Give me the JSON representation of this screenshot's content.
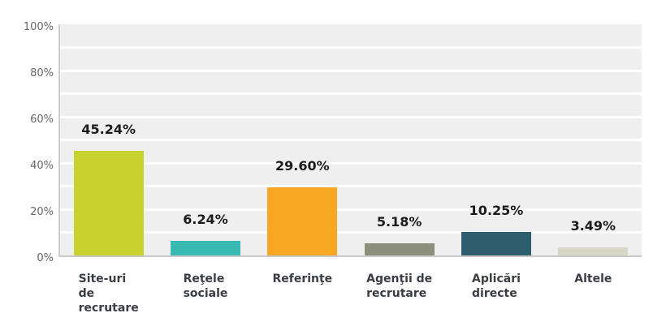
{
  "chart_data": {
    "type": "bar",
    "title": "",
    "categories": [
      "Site-uri de recrutare",
      "Reţele sociale",
      "Referinţe",
      "Agenţii de recrutare",
      "Aplicări directe",
      "Altele"
    ],
    "category_lines": [
      [
        "Site-uri",
        "de",
        "recrutare"
      ],
      [
        "Reţele",
        "sociale"
      ],
      [
        "Referinţe"
      ],
      [
        "Agenţii de",
        "recrutare"
      ],
      [
        "Aplicări",
        "directe"
      ],
      [
        "Altele"
      ]
    ],
    "values": [
      45.24,
      6.24,
      29.6,
      5.18,
      10.25,
      3.49
    ],
    "value_labels": [
      "45.24%",
      "6.24%",
      "29.60%",
      "5.18%",
      "10.25%",
      "3.49%"
    ],
    "bar_colors": [
      "#c8d22f",
      "#38bab2",
      "#f8a722",
      "#8c8f7c",
      "#2e5d6e",
      "#d6d7c6"
    ],
    "xlabel": "",
    "ylabel": "",
    "ylim": [
      0,
      100
    ],
    "ytick_labels": [
      "0%",
      "20%",
      "40%",
      "60%",
      "80%",
      "100%"
    ],
    "ytick_values": [
      0,
      20,
      40,
      60,
      80,
      100
    ],
    "gridline_step": 10,
    "grid": "on",
    "legend": "none",
    "colors": {
      "plot_background": "#efefef",
      "gridline": "#ffffff",
      "axis_line": "#c9c9c9",
      "ytick_text": "#666666",
      "xlabel_text": "#3a3d43",
      "value_text": "#1b1b1b",
      "page_background": "#ffffff"
    }
  }
}
